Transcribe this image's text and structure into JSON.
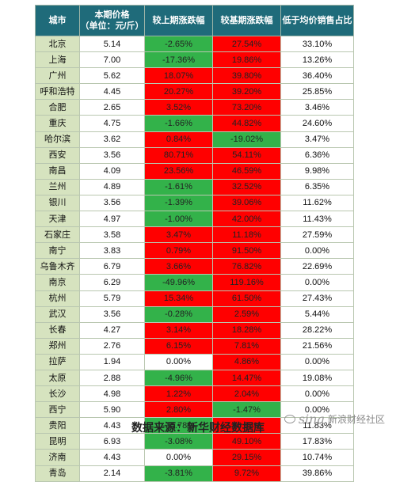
{
  "headers": {
    "city": "城市",
    "price_line1": "本期价格",
    "price_line2": "（单位：元/斤）",
    "mom": "较上期涨跌幅",
    "yoy": "较基期涨跌幅",
    "share": "低于均价销售占比"
  },
  "rows": [
    {
      "city": "北京",
      "price": "5.14",
      "mom": "-2.65%",
      "yoy": "27.54%",
      "share": "33.10%",
      "mom_color": "green",
      "yoy_color": "red"
    },
    {
      "city": "上海",
      "price": "7.00",
      "mom": "-17.36%",
      "yoy": "19.86%",
      "share": "13.26%",
      "mom_color": "green",
      "yoy_color": "red"
    },
    {
      "city": "广州",
      "price": "5.62",
      "mom": "18.07%",
      "yoy": "39.80%",
      "share": "36.40%",
      "mom_color": "red",
      "yoy_color": "red"
    },
    {
      "city": "呼和浩特",
      "price": "4.45",
      "mom": "20.27%",
      "yoy": "39.20%",
      "share": "25.85%",
      "mom_color": "red",
      "yoy_color": "red"
    },
    {
      "city": "合肥",
      "price": "2.65",
      "mom": "3.52%",
      "yoy": "73.20%",
      "share": "3.46%",
      "mom_color": "red",
      "yoy_color": "red"
    },
    {
      "city": "重庆",
      "price": "4.75",
      "mom": "-1.66%",
      "yoy": "44.82%",
      "share": "24.60%",
      "mom_color": "green",
      "yoy_color": "red"
    },
    {
      "city": "哈尔滨",
      "price": "3.62",
      "mom": "0.84%",
      "yoy": "-19.02%",
      "share": "3.47%",
      "mom_color": "red",
      "yoy_color": "green"
    },
    {
      "city": "西安",
      "price": "3.56",
      "mom": "80.71%",
      "yoy": "54.11%",
      "share": "6.36%",
      "mom_color": "red",
      "yoy_color": "red"
    },
    {
      "city": "南昌",
      "price": "4.09",
      "mom": "23.56%",
      "yoy": "46.59%",
      "share": "9.98%",
      "mom_color": "red",
      "yoy_color": "red"
    },
    {
      "city": "兰州",
      "price": "4.89",
      "mom": "-1.61%",
      "yoy": "32.52%",
      "share": "6.35%",
      "mom_color": "green",
      "yoy_color": "red"
    },
    {
      "city": "银川",
      "price": "3.56",
      "mom": "-1.39%",
      "yoy": "39.06%",
      "share": "11.62%",
      "mom_color": "green",
      "yoy_color": "red"
    },
    {
      "city": "天津",
      "price": "4.97",
      "mom": "-1.00%",
      "yoy": "42.00%",
      "share": "11.43%",
      "mom_color": "green",
      "yoy_color": "red"
    },
    {
      "city": "石家庄",
      "price": "3.58",
      "mom": "3.47%",
      "yoy": "11.18%",
      "share": "27.59%",
      "mom_color": "red",
      "yoy_color": "red"
    },
    {
      "city": "南宁",
      "price": "3.83",
      "mom": "0.79%",
      "yoy": "91.50%",
      "share": "0.00%",
      "mom_color": "red",
      "yoy_color": "red"
    },
    {
      "city": "乌鲁木齐",
      "price": "6.79",
      "mom": "3.66%",
      "yoy": "76.82%",
      "share": "22.69%",
      "mom_color": "red",
      "yoy_color": "red"
    },
    {
      "city": "南京",
      "price": "6.29",
      "mom": "-49.96%",
      "yoy": "119.16%",
      "share": "0.00%",
      "mom_color": "green",
      "yoy_color": "red"
    },
    {
      "city": "杭州",
      "price": "5.79",
      "mom": "15.34%",
      "yoy": "61.50%",
      "share": "27.43%",
      "mom_color": "red",
      "yoy_color": "red"
    },
    {
      "city": "武汉",
      "price": "3.56",
      "mom": "-0.28%",
      "yoy": "2.59%",
      "share": "5.44%",
      "mom_color": "green",
      "yoy_color": "red"
    },
    {
      "city": "长春",
      "price": "4.27",
      "mom": "3.14%",
      "yoy": "18.28%",
      "share": "28.22%",
      "mom_color": "red",
      "yoy_color": "red"
    },
    {
      "city": "郑州",
      "price": "2.76",
      "mom": "6.15%",
      "yoy": "7.81%",
      "share": "21.56%",
      "mom_color": "red",
      "yoy_color": "red"
    },
    {
      "city": "拉萨",
      "price": "1.94",
      "mom": "0.00%",
      "yoy": "4.86%",
      "share": "0.00%",
      "mom_color": "white",
      "yoy_color": "red"
    },
    {
      "city": "太原",
      "price": "2.88",
      "mom": "-4.96%",
      "yoy": "14.47%",
      "share": "19.08%",
      "mom_color": "green",
      "yoy_color": "red"
    },
    {
      "city": "长沙",
      "price": "4.98",
      "mom": "1.22%",
      "yoy": "2.04%",
      "share": "0.00%",
      "mom_color": "red",
      "yoy_color": "red"
    },
    {
      "city": "西宁",
      "price": "5.90",
      "mom": "2.80%",
      "yoy": "-1.47%",
      "share": "0.00%",
      "mom_color": "red",
      "yoy_color": "green"
    },
    {
      "city": "贵阳",
      "price": "4.43",
      "mom": "-30.78%",
      "yoy": "46.83%",
      "share": "11.83%",
      "mom_color": "green",
      "yoy_color": "red"
    },
    {
      "city": "昆明",
      "price": "6.93",
      "mom": "-3.08%",
      "yoy": "49.10%",
      "share": "17.83%",
      "mom_color": "green",
      "yoy_color": "red"
    },
    {
      "city": "济南",
      "price": "4.43",
      "mom": "0.00%",
      "yoy": "29.15%",
      "share": "10.74%",
      "mom_color": "white",
      "yoy_color": "red"
    },
    {
      "city": "青岛",
      "price": "2.14",
      "mom": "-3.81%",
      "yoy": "9.72%",
      "share": "39.86%",
      "mom_color": "green",
      "yoy_color": "red"
    }
  ],
  "footer": "数据来源：新华财经数据库",
  "watermark": {
    "logo": "sina",
    "text": "新浪财经社区"
  }
}
